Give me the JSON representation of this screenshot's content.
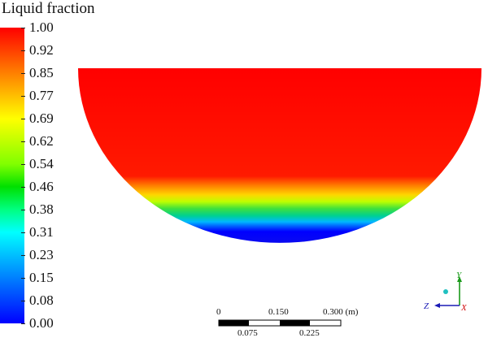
{
  "legend": {
    "title": "Liquid fraction",
    "ticks": [
      "1.00",
      "0.92",
      "0.85",
      "0.77",
      "0.69",
      "0.62",
      "0.54",
      "0.46",
      "0.38",
      "0.31",
      "0.23",
      "0.15",
      "0.08",
      "0.00"
    ],
    "colors": [
      "#ff0000",
      "#ff4000",
      "#ff8000",
      "#ffbf00",
      "#ffff00",
      "#bfff00",
      "#80ff00",
      "#00e000",
      "#00ff80",
      "#00ffff",
      "#00bfff",
      "#0080ff",
      "#0040ff",
      "#0000ff"
    ]
  },
  "contour": {
    "field": "liquid fraction",
    "fill_level_fraction": 1.0
  },
  "scale_bar": {
    "top_labels": [
      "0",
      "0.150",
      "0.300 (m)"
    ],
    "bottom_labels": [
      "0.075",
      "0.225"
    ]
  },
  "triad": {
    "y_label": "Y",
    "z_label": "Z",
    "x_label": "X",
    "y_color": "#1a9a1a",
    "z_color": "#1a1ab5",
    "x_color": "#d01010",
    "origin_color": "#20c0c0"
  }
}
